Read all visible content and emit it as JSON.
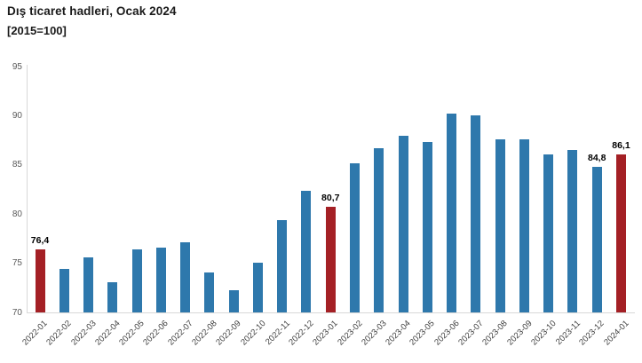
{
  "header": {
    "title": "Dış ticaret hadleri, Ocak 2024",
    "subtitle": "[2015=100]"
  },
  "colors": {
    "bar_blue": "#2e78ac",
    "bar_red": "#a42025",
    "axis_line": "#d8d8d8",
    "y_tick_label": "#595959",
    "x_tick_label": "#3d3d3d",
    "data_label": "#000000"
  },
  "chart_data": {
    "type": "bar",
    "title": "Dış ticaret hadleri, Ocak 2024",
    "subtitle": "[2015=100]",
    "xlabel": "",
    "ylabel": "",
    "ylim": [
      70,
      95
    ],
    "yticks": [
      70,
      75,
      80,
      85,
      90,
      95
    ],
    "grid": false,
    "legend": false,
    "categories": [
      "2022-01",
      "2022-02",
      "2022-03",
      "2022-04",
      "2022-05",
      "2022-06",
      "2022-07",
      "2022-08",
      "2022-09",
      "2022-10",
      "2022-11",
      "2022-12",
      "2023-01",
      "2023-02",
      "2023-03",
      "2023-04",
      "2023-05",
      "2023-06",
      "2023-07",
      "2023-08",
      "2023-09",
      "2023-10",
      "2023-11",
      "2023-12",
      "2024-01"
    ],
    "values": [
      76.4,
      74.4,
      75.6,
      73.1,
      76.4,
      76.6,
      77.1,
      74.1,
      72.3,
      75.1,
      79.4,
      82.4,
      80.7,
      85.2,
      86.7,
      88.0,
      87.3,
      90.2,
      90.0,
      87.6,
      87.6,
      86.1,
      86.5,
      84.8,
      86.1
    ],
    "highlighted_categories": [
      "2022-01",
      "2023-01",
      "2024-01"
    ],
    "data_labels": {
      "2022-01": "76,4",
      "2023-01": "80,7",
      "2023-12": "84,8",
      "2024-01": "86,1"
    }
  }
}
